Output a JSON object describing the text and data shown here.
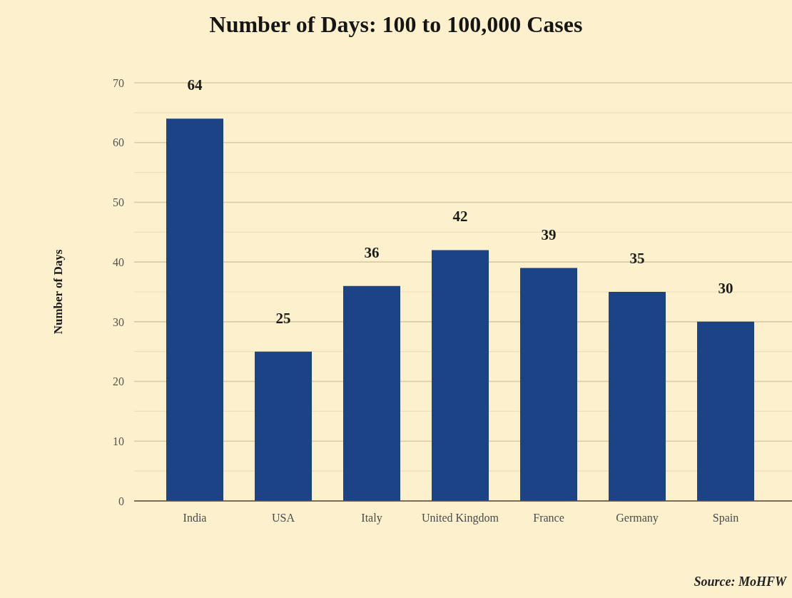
{
  "chart_data": {
    "type": "bar",
    "title": "Number of Days: 100 to 100,000 Cases",
    "ylabel": "Number of Days",
    "categories": [
      "India",
      "USA",
      "Italy",
      "United Kingdom",
      "France",
      "Germany",
      "Spain"
    ],
    "values": [
      64,
      25,
      36,
      42,
      39,
      35,
      30
    ],
    "color": "#1d4387",
    "ylim": [
      0,
      70
    ],
    "yticks": [
      0,
      {
        "value": 5,
        "label": null
      },
      10,
      {
        "value": 15,
        "label": null
      },
      20,
      {
        "value": 25,
        "label": null
      },
      30,
      {
        "value": 35,
        "label": null
      },
      40,
      {
        "value": 45,
        "label": null
      },
      50,
      {
        "value": 55,
        "label": null
      },
      60,
      {
        "value": 65,
        "label": null
      },
      70
    ],
    "grid": "y",
    "data_labels": true,
    "annotations": [
      "Source: MoHFW"
    ]
  }
}
